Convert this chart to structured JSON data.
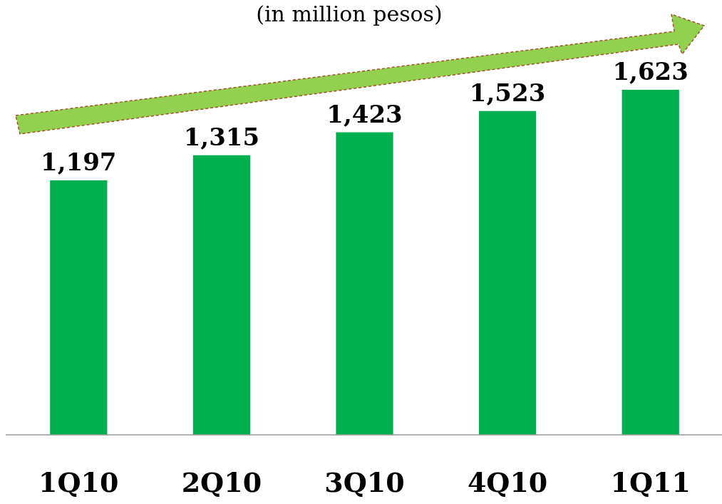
{
  "chart_data": {
    "type": "bar",
    "title": "(in million pesos)",
    "categories": [
      "1Q10",
      "2Q10",
      "3Q10",
      "4Q10",
      "1Q11"
    ],
    "values": [
      1197,
      1315,
      1423,
      1523,
      1623
    ],
    "value_labels": [
      "1,197",
      "1,315",
      "1,423",
      "1,523",
      "1,623"
    ],
    "color": "#00b050"
  }
}
